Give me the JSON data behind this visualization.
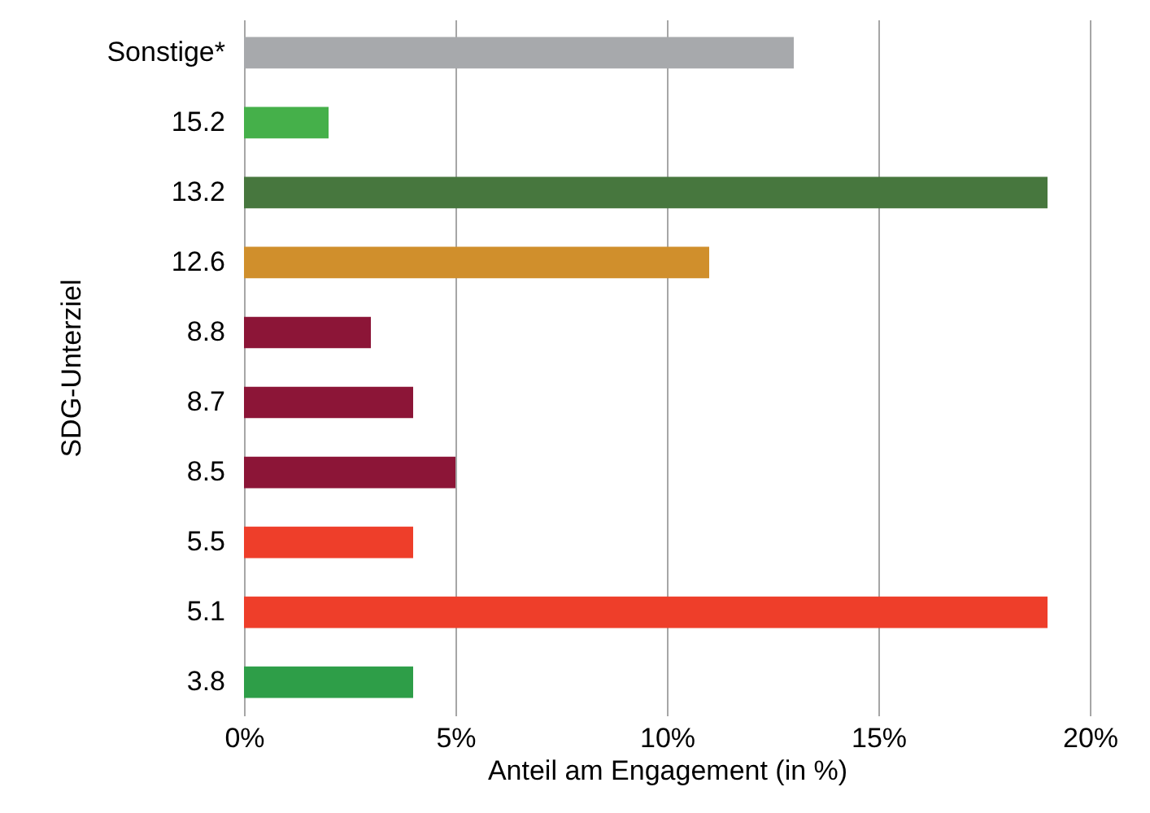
{
  "chart_data": {
    "type": "bar",
    "orientation": "horizontal",
    "categories": [
      "Sonstige*",
      "15.2",
      "13.2",
      "12.6",
      "8.8",
      "8.7",
      "8.5",
      "5.5",
      "5.1",
      "3.8"
    ],
    "values": [
      13,
      2,
      19,
      11,
      3,
      4,
      5,
      4,
      19,
      4
    ],
    "colors": [
      "#a7a9ac",
      "#45b04a",
      "#47773e",
      "#d08f2c",
      "#8c1537",
      "#8c1537",
      "#8c1537",
      "#ee3e2a",
      "#ee3e2a",
      "#2e9e48"
    ],
    "xlim": [
      0,
      20
    ],
    "xticks": [
      {
        "value": 0,
        "label": "0%"
      },
      {
        "value": 5,
        "label": "5%"
      },
      {
        "value": 10,
        "label": "10%"
      },
      {
        "value": 15,
        "label": "15%"
      },
      {
        "value": 20,
        "label": "20%"
      }
    ],
    "xlabel": "Anteil am Engagement (in %)",
    "ylabel": "SDG-Unterziel",
    "grid": "x"
  }
}
